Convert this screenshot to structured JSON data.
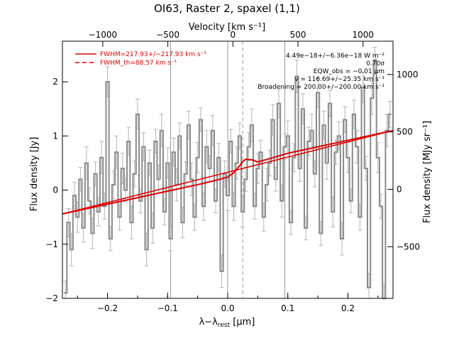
{
  "chart_data": {
    "type": "line",
    "title": "OI63, Raster 2, spaxel (1,1)",
    "xlabel_html": "λ−λ<tspan font-size=\"9\" dy=\"3\">rest</tspan><tspan dy=\"-3\"> [</tspan>μm]",
    "xlabel": "λ−λrest [μm]",
    "ylabel": "Flux density [Jy]",
    "ylabel_right": "Flux density [MJy sr⁻¹]",
    "xlabel_top": "Velocity [km s⁻¹]",
    "xlim": [
      -0.275,
      0.275
    ],
    "ylim": [
      -2.0,
      2.75
    ],
    "y2lim": [
      -950,
      1290
    ],
    "vlim": [
      -1310,
      1230
    ],
    "x_ticks": [
      -0.2,
      -0.1,
      0.0,
      0.1,
      0.2
    ],
    "x_tick_labels": [
      "−0.2",
      "−0.1",
      "0.0",
      "0.1",
      "0.2"
    ],
    "y_ticks": [
      -2,
      -1,
      0,
      1,
      2
    ],
    "y_tick_labels": [
      "−2",
      "−1",
      "0",
      "1",
      "2"
    ],
    "y2_ticks": [
      -500,
      0,
      500,
      1000
    ],
    "y2_tick_labels": [
      "−500",
      "0",
      "500",
      "1000"
    ],
    "v_ticks": [
      -1000,
      -500,
      0,
      500,
      1000
    ],
    "v_tick_labels": [
      "−1000",
      "−500",
      "0",
      "500",
      "1000"
    ],
    "vertical_lines": [
      -0.095,
      0.0,
      0.095
    ],
    "dashed_line_x": 0.025,
    "legend": {
      "placement": "top-left",
      "entries": [
        {
          "label": "FWHM=217.93+/−217.93 km s⁻¹",
          "style": "solid",
          "color": "#e00000"
        },
        {
          "label": "FWHM_th=88.57 km s⁻¹",
          "style": "dashed",
          "color": "#e00000"
        }
      ]
    },
    "annotations": [
      "4.49e−18+/−6.36e−18 W m⁻²",
      "0.70σ",
      "EQW_obs = −0.01 μm",
      "v = 116.69+/−25.35 km s⁻¹",
      "Broadening = 200.00+/−200.00 km s⁻¹"
    ],
    "colors": {
      "spectrum": "#8a8a8a",
      "error": "#b4b4b4",
      "fit": "#e00000"
    },
    "series": [
      {
        "name": "spectrum",
        "style": "steps",
        "x": [
          -0.27,
          -0.265,
          -0.26,
          -0.255,
          -0.25,
          -0.245,
          -0.24,
          -0.235,
          -0.23,
          -0.225,
          -0.22,
          -0.215,
          -0.21,
          -0.205,
          -0.2,
          -0.195,
          -0.19,
          -0.185,
          -0.18,
          -0.175,
          -0.17,
          -0.165,
          -0.16,
          -0.155,
          -0.15,
          -0.145,
          -0.14,
          -0.135,
          -0.13,
          -0.125,
          -0.12,
          -0.115,
          -0.11,
          -0.105,
          -0.1,
          -0.095,
          -0.09,
          -0.085,
          -0.08,
          -0.075,
          -0.07,
          -0.065,
          -0.06,
          -0.055,
          -0.05,
          -0.045,
          -0.04,
          -0.035,
          -0.03,
          -0.025,
          -0.02,
          -0.015,
          -0.01,
          -0.005,
          0.0,
          0.005,
          0.01,
          0.015,
          0.02,
          0.025,
          0.03,
          0.035,
          0.04,
          0.045,
          0.05,
          0.055,
          0.06,
          0.065,
          0.07,
          0.075,
          0.08,
          0.085,
          0.09,
          0.095,
          0.1,
          0.105,
          0.11,
          0.115,
          0.12,
          0.125,
          0.13,
          0.135,
          0.14,
          0.145,
          0.15,
          0.155,
          0.16,
          0.165,
          0.17,
          0.175,
          0.18,
          0.185,
          0.19,
          0.195,
          0.2,
          0.205,
          0.21,
          0.215,
          0.22,
          0.225,
          0.23,
          0.235,
          0.24,
          0.245,
          0.25,
          0.255,
          0.26,
          0.265,
          0.27
        ],
        "y": [
          -1.9,
          -0.6,
          -1.1,
          -0.1,
          -0.5,
          0.2,
          -0.7,
          0.5,
          -0.2,
          -0.8,
          0.3,
          -0.4,
          0.6,
          -0.3,
          2.0,
          -0.9,
          0.1,
          0.7,
          -0.5,
          0.4,
          0.0,
          0.9,
          -0.6,
          0.3,
          1.4,
          -0.2,
          0.8,
          -1.1,
          0.5,
          -0.7,
          0.9,
          0.2,
          1.1,
          -0.4,
          0.5,
          -0.9,
          0.7,
          0.1,
          1.0,
          -0.6,
          0.3,
          1.2,
          0.2,
          -0.5,
          0.6,
          1.3,
          -0.3,
          0.8,
          0.4,
          1.1,
          -0.2,
          0.6,
          -1.5,
          0.3,
          -0.1,
          0.9,
          -0.3,
          0.5,
          1.0,
          -0.4,
          0.2,
          0.8,
          1.2,
          -0.3,
          0.4,
          0.7,
          -0.5,
          0.1,
          0.5,
          1.3,
          0.2,
          1.6,
          -0.2,
          0.8,
          1.0,
          -0.6,
          0.6,
          2.1,
          0.4,
          1.5,
          -0.7,
          0.9,
          1.1,
          0.3,
          1.8,
          -0.8,
          1.2,
          0.5,
          1.6,
          -0.4,
          0.7,
          1.0,
          -0.9,
          1.3,
          0.6,
          -0.2,
          1.4,
          0.8,
          -0.5,
          1.9,
          0.4,
          -1.8,
          1.7,
          2.4,
          0.6,
          -0.3,
          -2.0,
          1.1,
          1.4
        ]
      },
      {
        "name": "fit",
        "style": "line",
        "x": [
          -0.275,
          -0.05,
          -0.02,
          0.0,
          0.01,
          0.02,
          0.025,
          0.03,
          0.04,
          0.05,
          0.06,
          0.1,
          0.275
        ],
        "y": [
          -0.44,
          0.1,
          0.18,
          0.24,
          0.32,
          0.45,
          0.53,
          0.57,
          0.56,
          0.52,
          0.55,
          0.68,
          1.1
        ]
      },
      {
        "name": "continuum",
        "style": "line",
        "x": [
          -0.275,
          0.275
        ],
        "y": [
          -0.44,
          1.1
        ]
      }
    ]
  }
}
